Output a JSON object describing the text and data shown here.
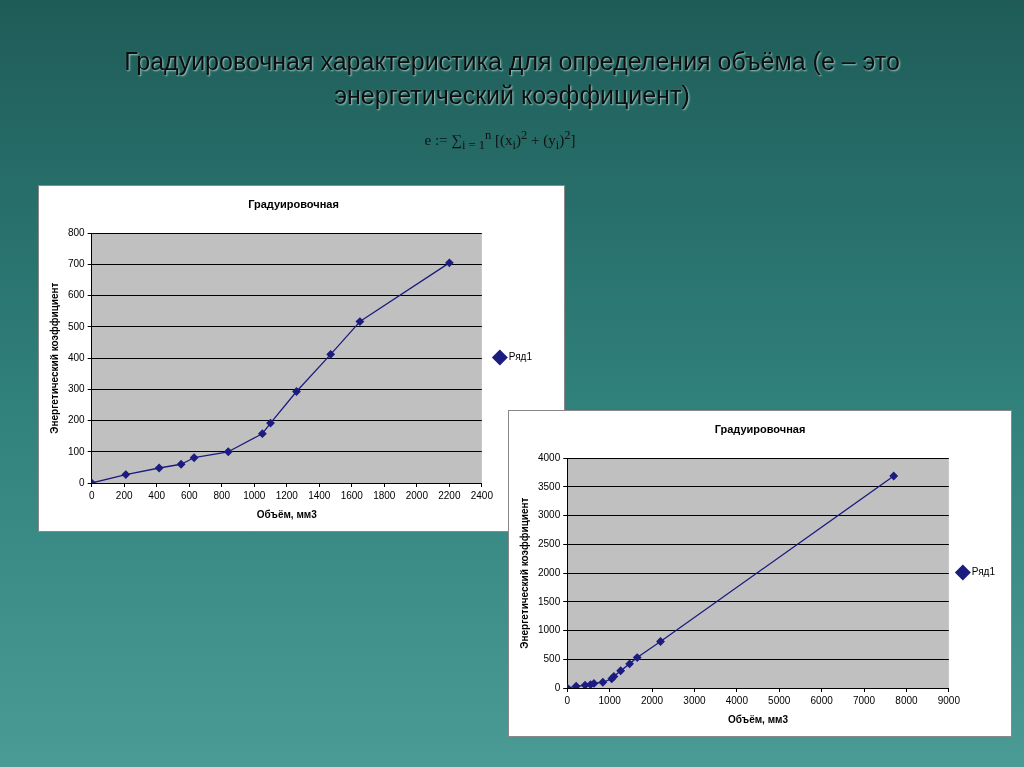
{
  "chart_data": [
    {
      "type": "line",
      "title": "Градуировочная",
      "xlabel": "Объём, мм3",
      "ylabel": "Энергетический коэффициент",
      "annotations": [
        "Градуировочная характеристика для определения объёма (e – это энергетический коэффициент)",
        "e := ∑$_{i = 1}$$^{n}$ [(x$_{i}$)$^{2}$ + (y$_{i}$)$^{2}$]"
      ],
      "x": [
        0,
        210,
        415,
        550,
        630,
        840,
        1050,
        1100,
        1260,
        1470,
        1650,
        2200
      ],
      "series": [
        {
          "name": "Ряд1",
          "color": "#1c1c80",
          "values": [
            0,
            27,
            48,
            60,
            81,
            100,
            158,
            192,
            293,
            412,
            517,
            705
          ]
        }
      ],
      "xlim": [
        0,
        2400
      ],
      "xticks": [
        0,
        200,
        400,
        600,
        800,
        1000,
        1200,
        1400,
        1600,
        1800,
        2000,
        2200,
        2400
      ],
      "ylim": [
        0,
        800
      ],
      "yticks": [
        0,
        100,
        200,
        300,
        400,
        500,
        600,
        700,
        800
      ],
      "grid": "y",
      "legend": "right",
      "marker": "diamond",
      "line_style": "solid"
    },
    {
      "type": "line",
      "title": "Градуировочная",
      "xlabel": "Объём, мм3",
      "ylabel": "Энергетический коэффициент",
      "x": [
        0,
        210,
        420,
        550,
        630,
        840,
        1050,
        1100,
        1260,
        1470,
        1650,
        2200,
        7700
      ],
      "series": [
        {
          "name": "Ряд1",
          "color": "#1c1c80",
          "values": [
            0,
            30,
            50,
            60,
            80,
            100,
            160,
            200,
            300,
            420,
            530,
            810,
            3690
          ]
        }
      ],
      "xlim": [
        0,
        9000
      ],
      "xticks": [
        0,
        1000,
        2000,
        3000,
        4000,
        5000,
        6000,
        7000,
        8000,
        9000
      ],
      "ylim": [
        0,
        4000
      ],
      "yticks": [
        0,
        500,
        1000,
        1500,
        2000,
        2500,
        3000,
        3500,
        4000
      ],
      "grid": "y",
      "legend": "right",
      "marker": "diamond",
      "line_style": "solid"
    }
  ]
}
